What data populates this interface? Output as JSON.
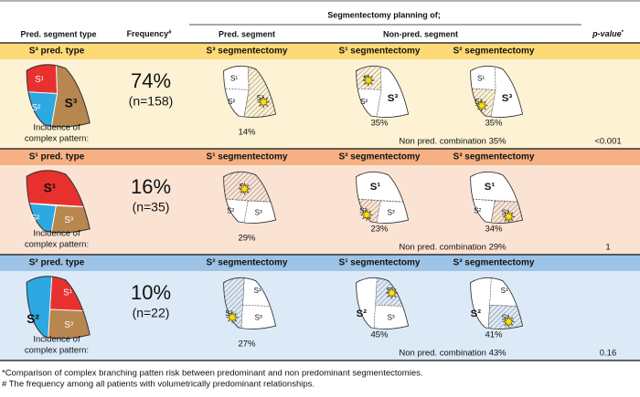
{
  "header": {
    "group_title": "Segmentectomy planning of;",
    "col_type": "Pred. segment type",
    "col_frequency": "Frequency",
    "col_frequency_mark": "#",
    "col_pred": "Pred. segment",
    "col_nonpred": "Non-pred. segment",
    "col_p": "p-value",
    "col_p_mark": "*"
  },
  "sections": [
    {
      "title": "S³ pred. type",
      "frequency": "74%",
      "n": "(n=158)",
      "incidence": [
        "Incidence of",
        "complex pattern:"
      ],
      "colored_labels": [
        "S¹",
        "S²",
        "S³"
      ],
      "panels": [
        {
          "heading": "S³ segmentectomy",
          "labels": [
            "S¹",
            "S²",
            "S³"
          ],
          "percent": "14%"
        },
        {
          "heading": "S¹ segmentectomy",
          "labels": [
            "S¹",
            "S²",
            "S³"
          ],
          "percent": "35%"
        },
        {
          "heading": "S² segmentectomy",
          "labels": [
            "S¹",
            "S²",
            "S³"
          ],
          "percent": "35%"
        }
      ],
      "combination": "Non pred. combination 35%",
      "p_value": "<0.001"
    },
    {
      "title": "S¹ pred. type",
      "frequency": "16%",
      "n": "(n=35)",
      "incidence": [
        "Incidence of",
        "complex pattern:"
      ],
      "colored_labels": [
        "S¹",
        "S²",
        "S³"
      ],
      "panels": [
        {
          "heading": "S¹ segmentectomy",
          "labels": [
            "S¹",
            "S²",
            "S³"
          ],
          "percent": "29%"
        },
        {
          "heading": "S² segmentectomy",
          "labels": [
            "S¹",
            "S²",
            "S³"
          ],
          "percent": "23%"
        },
        {
          "heading": "S³ segmentectomy",
          "labels": [
            "S¹",
            "S²",
            "S³"
          ],
          "percent": "34%"
        }
      ],
      "combination": "Non pred. combination 29%",
      "p_value": "1"
    },
    {
      "title": "S² pred. type",
      "frequency": "10%",
      "n": "(n=22)",
      "incidence": [
        "Incidence of",
        "complex pattern:"
      ],
      "colored_labels": [
        "S¹",
        "S²",
        "S³"
      ],
      "panels": [
        {
          "heading": "S² segmentectomy",
          "labels": [
            "S¹",
            "S²",
            "S³"
          ],
          "percent": "27%"
        },
        {
          "heading": "S¹ segmentectomy",
          "labels": [
            "S¹",
            "S²",
            "S³"
          ],
          "percent": "45%"
        },
        {
          "heading": "S³ segmentectomy",
          "labels": [
            "S¹",
            "S²",
            "S³"
          ],
          "percent": "41%"
        }
      ],
      "combination": "Non pred. combination 43%",
      "p_value": "0.16"
    }
  ],
  "footnotes": [
    "*Comparison of complex branching patten risk between predominant and non predominant segmentectomies.",
    "# The frequency among all patients with volumetrically predominant relationships."
  ]
}
